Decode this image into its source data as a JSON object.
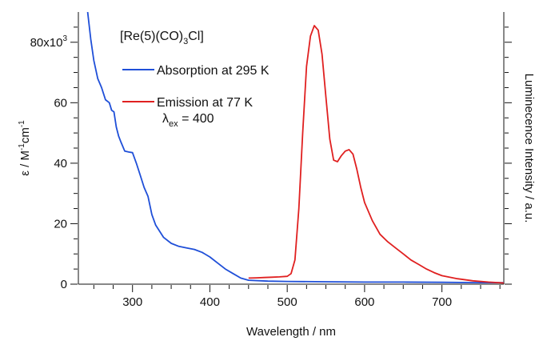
{
  "chart_data": {
    "type": "line",
    "title": "[Re(5)(CO)3Cl]",
    "xlabel": "Wavelength / nm",
    "ylabel_left": "ε / M-1cm-1",
    "ylabel_right": "Luminecence Intensity / a.u.",
    "xlim": [
      230,
      780
    ],
    "ylim_left": [
      0,
      90000
    ],
    "x_ticks": [
      300,
      400,
      500,
      600,
      700
    ],
    "y_ticks": [
      0,
      20000,
      40000,
      60000,
      80000
    ],
    "y_tick_labels": [
      "0",
      "20",
      "40",
      "60",
      "80x10"
    ],
    "y_tick_exponent": "3",
    "grid": false,
    "legend_position": "top-left",
    "series": [
      {
        "name": "Absorption at 295 K",
        "color": "#1f4fd8",
        "axis": "left",
        "x": [
          242,
          246,
          250,
          255,
          260,
          265,
          270,
          273,
          276,
          279,
          282,
          285,
          290,
          295,
          300,
          305,
          310,
          315,
          320,
          325,
          330,
          335,
          340,
          350,
          360,
          370,
          380,
          390,
          400,
          410,
          420,
          430,
          440,
          450,
          475,
          500,
          550,
          600,
          650,
          700,
          750,
          780
        ],
        "y": [
          90000,
          81000,
          74000,
          68000,
          65000,
          61000,
          60000,
          57500,
          57000,
          52000,
          49000,
          47000,
          44000,
          43700,
          43500,
          40000,
          36000,
          32000,
          29000,
          23000,
          19500,
          17500,
          15500,
          13500,
          12500,
          12000,
          11500,
          10500,
          9000,
          7000,
          5000,
          3500,
          2000,
          1300,
          1000,
          900,
          800,
          700,
          700,
          600,
          500,
          500
        ]
      },
      {
        "name": "Emission at 77 K",
        "color": "#e02020",
        "axis": "right",
        "annotation": "λex = 400",
        "x": [
          450,
          460,
          470,
          480,
          490,
          500,
          505,
          510,
          515,
          520,
          525,
          530,
          535,
          540,
          545,
          550,
          555,
          560,
          565,
          570,
          575,
          580,
          585,
          590,
          595,
          600,
          610,
          620,
          630,
          640,
          650,
          660,
          670,
          680,
          690,
          700,
          720,
          740,
          760,
          780
        ],
        "y": [
          2000,
          2100,
          2200,
          2300,
          2400,
          2600,
          3500,
          8000,
          25000,
          50000,
          72000,
          82000,
          85500,
          84000,
          76000,
          62000,
          48000,
          41000,
          40500,
          42500,
          44000,
          44500,
          43000,
          38000,
          32000,
          27000,
          21000,
          16500,
          14000,
          12000,
          10000,
          8000,
          6500,
          5000,
          3800,
          2800,
          1800,
          1100,
          700,
          400
        ]
      }
    ]
  }
}
